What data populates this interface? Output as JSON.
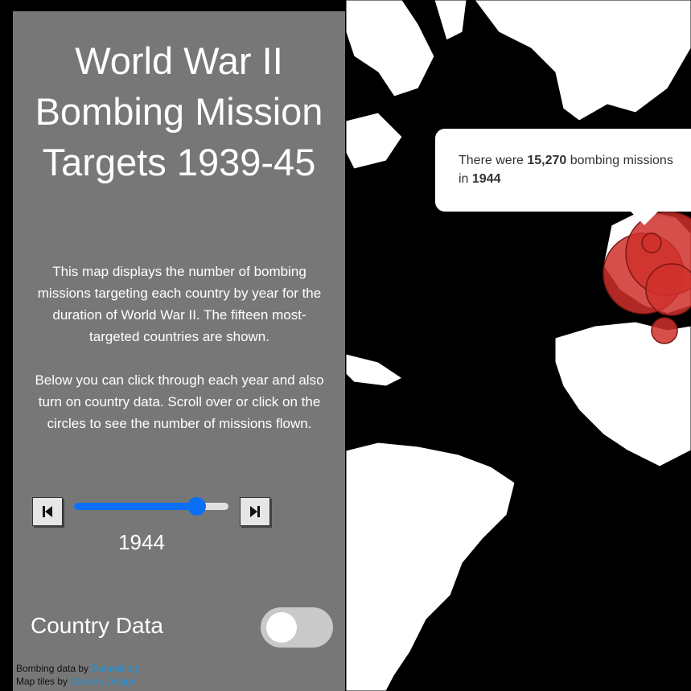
{
  "title": "World War II Bombing Mission Targets 1939-45",
  "description": [
    "This map displays the number of bombing missions targeting each country by year for the duration of World War II. The fifteen most-targeted countries are shown.",
    "Below you can click through each year and also turn on country data. Scroll over or click on the circles to see the number of missions flown."
  ],
  "slider": {
    "min_year": 1939,
    "max_year": 1945,
    "current_year": "1944",
    "value": 1944
  },
  "country_data": {
    "label": "Country Data",
    "enabled": false
  },
  "popup": {
    "text_1": "There were ",
    "count": "15,270",
    "text_2": " bombing missions",
    "text_3": "in ",
    "year": "1944"
  },
  "credits": {
    "bombing_prefix": "Bombing data by ",
    "bombing_link": "Datamil.org",
    "tiles_prefix": "Map tiles by ",
    "tiles_link": "Stamen Design"
  },
  "colors": {
    "circle_fill": "#d0302b",
    "circle_stroke": "#7a1712",
    "slider_accent": "#0a6ff5",
    "ocean": "#000000",
    "land": "#ffffff"
  },
  "icons": {
    "prev": "skip-back-icon",
    "next": "skip-forward-icon"
  }
}
